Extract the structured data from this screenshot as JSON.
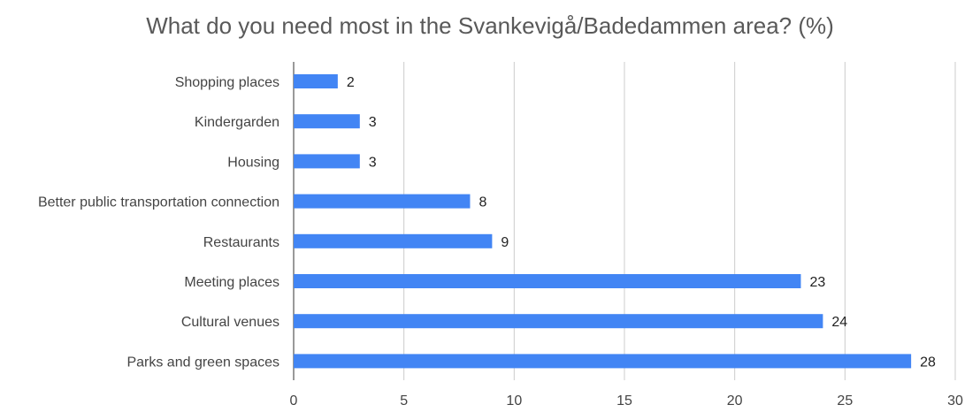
{
  "chart_data": {
    "type": "bar",
    "orientation": "horizontal",
    "title": "What do you need most in the Svankevigå/Badedammen area? (%)",
    "categories": [
      "Shopping places",
      "Kindergarden",
      "Housing",
      "Better public transportation connection",
      "Restaurants",
      "Meeting places",
      "Cultural venues",
      "Parks and green spaces"
    ],
    "values": [
      2,
      3,
      3,
      8,
      9,
      23,
      24,
      28
    ],
    "xlim": [
      0,
      30
    ],
    "xticks": [
      0,
      5,
      10,
      15,
      20,
      25,
      30
    ],
    "grid": "vertical",
    "data_labels": true,
    "legend": "none",
    "bar_color": "#4285f4"
  }
}
